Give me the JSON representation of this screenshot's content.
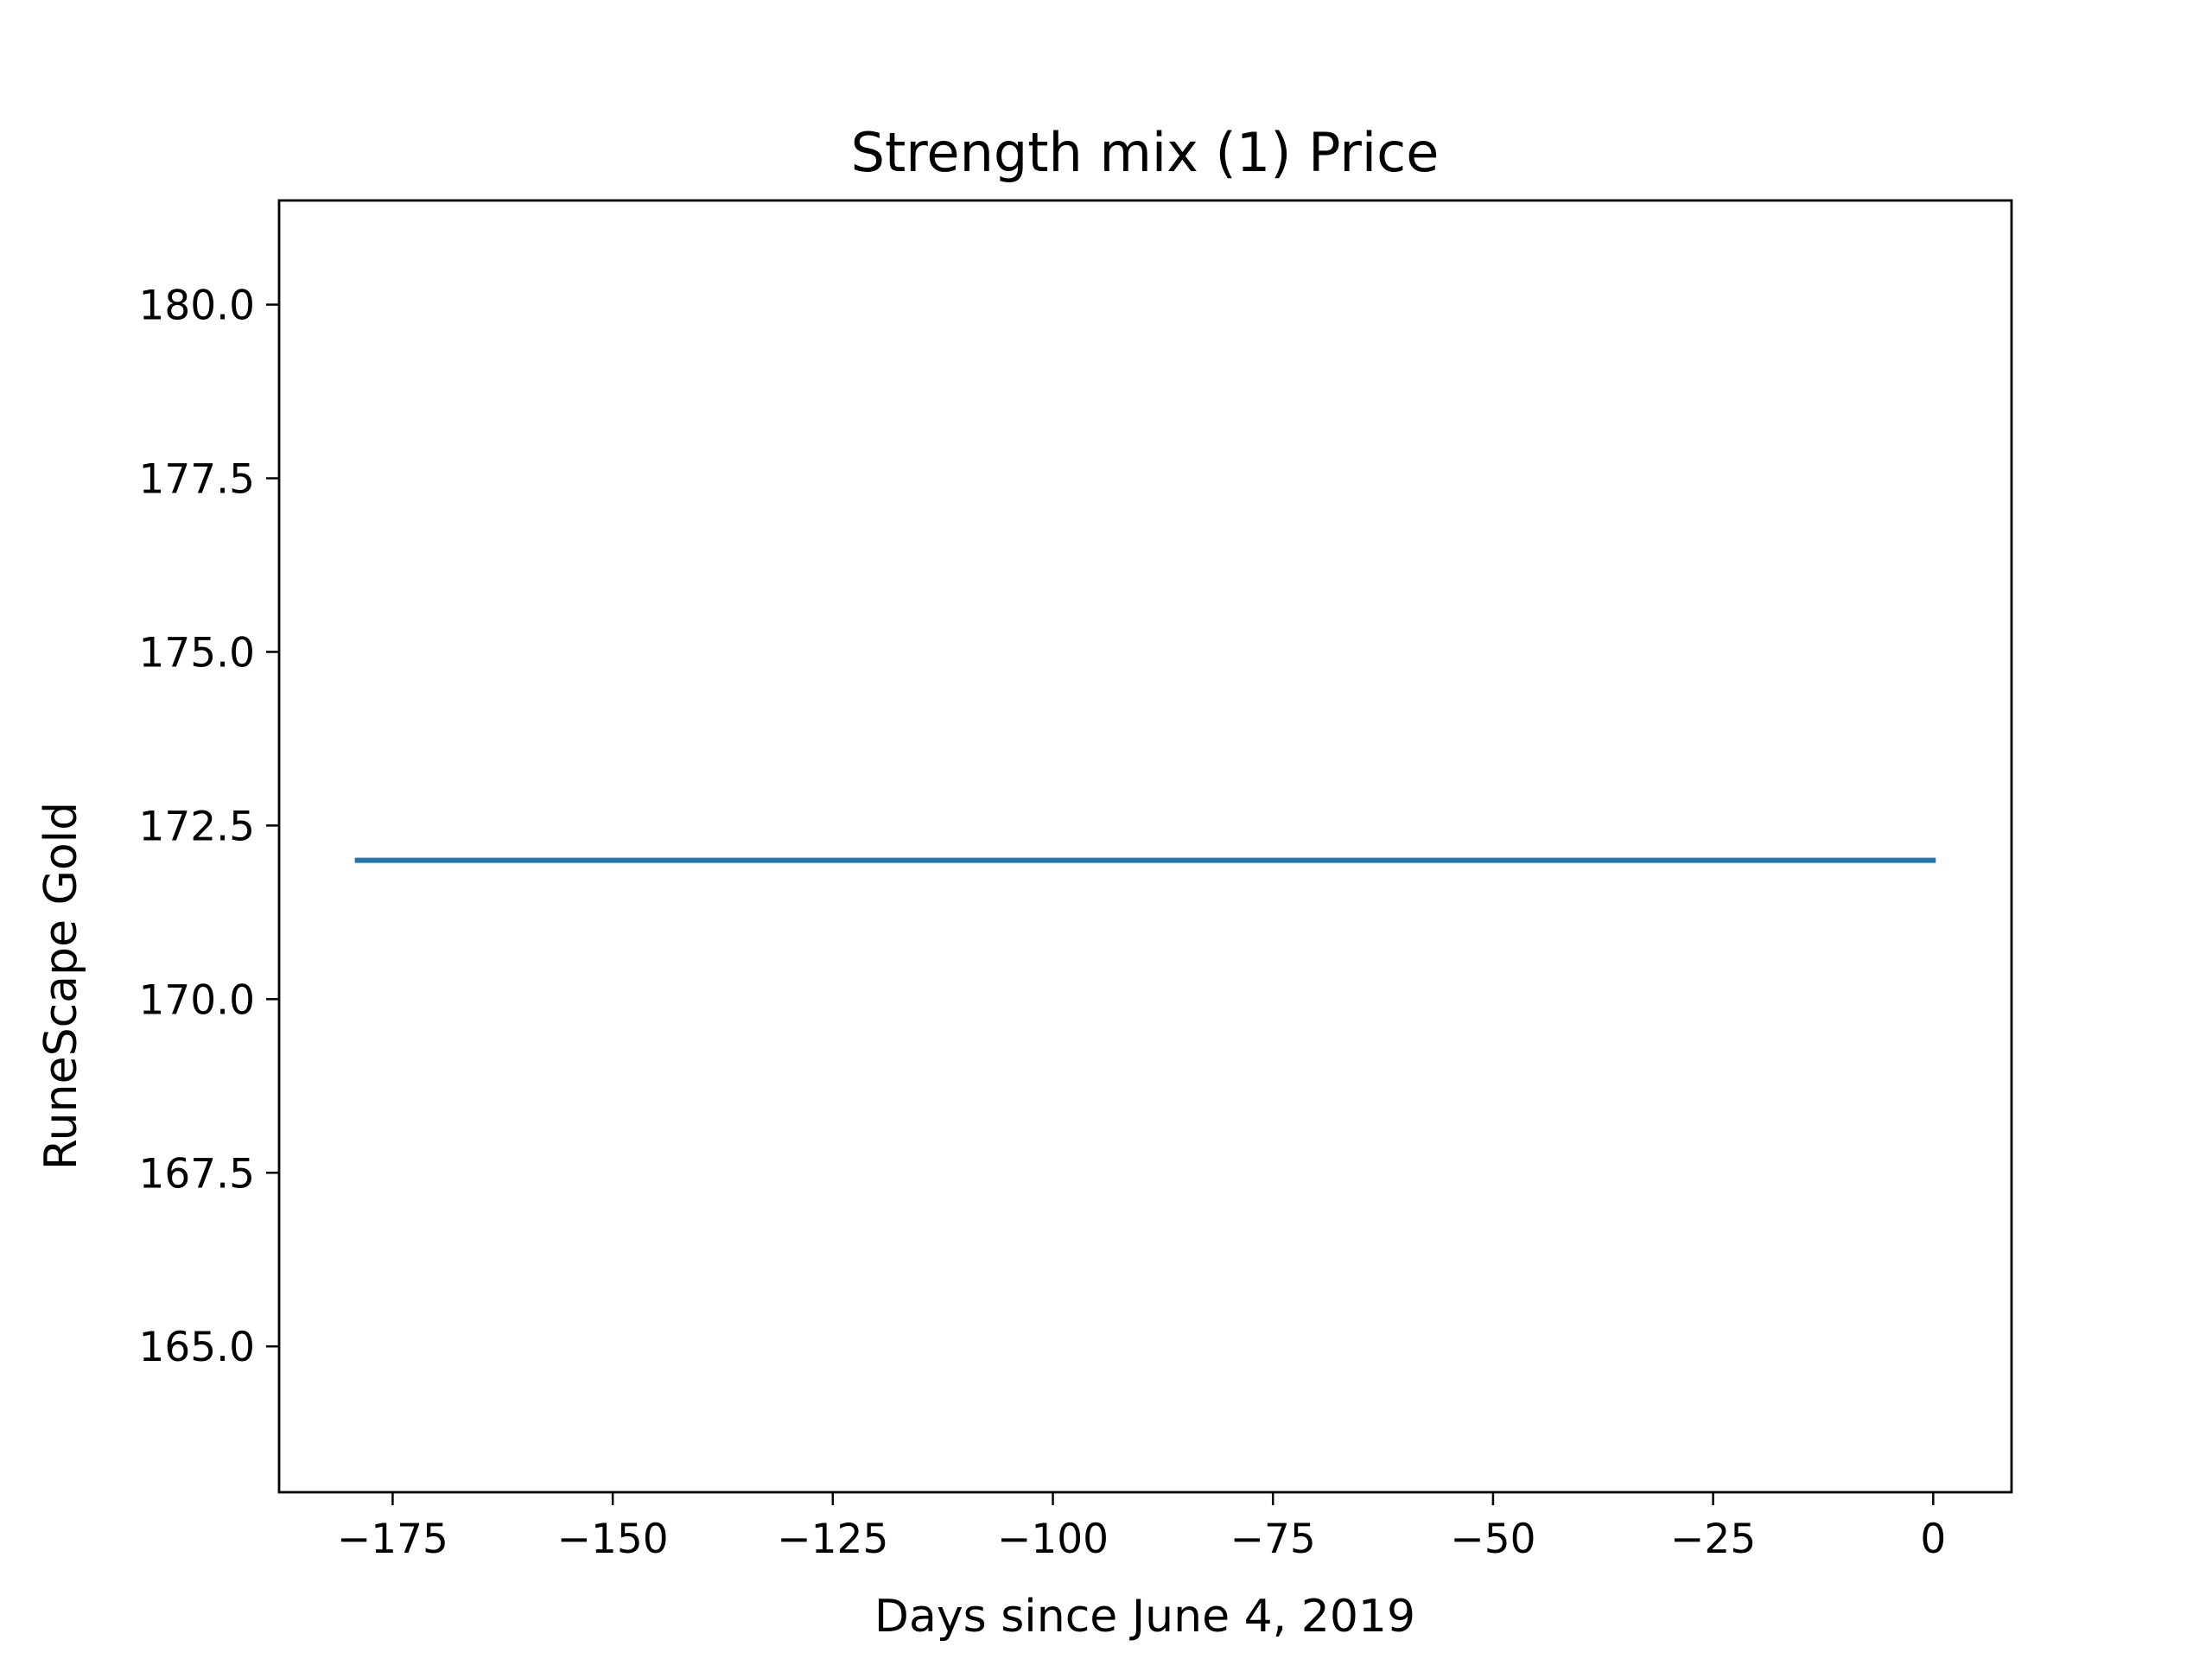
{
  "chart_data": {
    "type": "line",
    "title": "Strength mix (1) Price",
    "xlabel": "Days since June 4, 2019",
    "ylabel": "RuneScape Gold",
    "xlim": [
      -187.9,
      8.9
    ],
    "ylim": [
      162.9,
      181.5
    ],
    "x_ticks": [
      -175,
      -150,
      -125,
      -100,
      -75,
      -50,
      -25,
      0
    ],
    "x_tick_labels": [
      "−175",
      "−150",
      "−125",
      "−100",
      "−75",
      "−50",
      "−25",
      "0"
    ],
    "y_ticks": [
      165.0,
      167.5,
      170.0,
      172.5,
      175.0,
      177.5,
      180.0
    ],
    "y_tick_labels": [
      "165.0",
      "167.5",
      "170.0",
      "172.5",
      "175.0",
      "177.5",
      "180.0"
    ],
    "grid": false,
    "legend": "none",
    "series": [
      {
        "color": "#1f77b4",
        "x": [
          -179,
          0
        ],
        "y": [
          172,
          172
        ]
      }
    ]
  }
}
